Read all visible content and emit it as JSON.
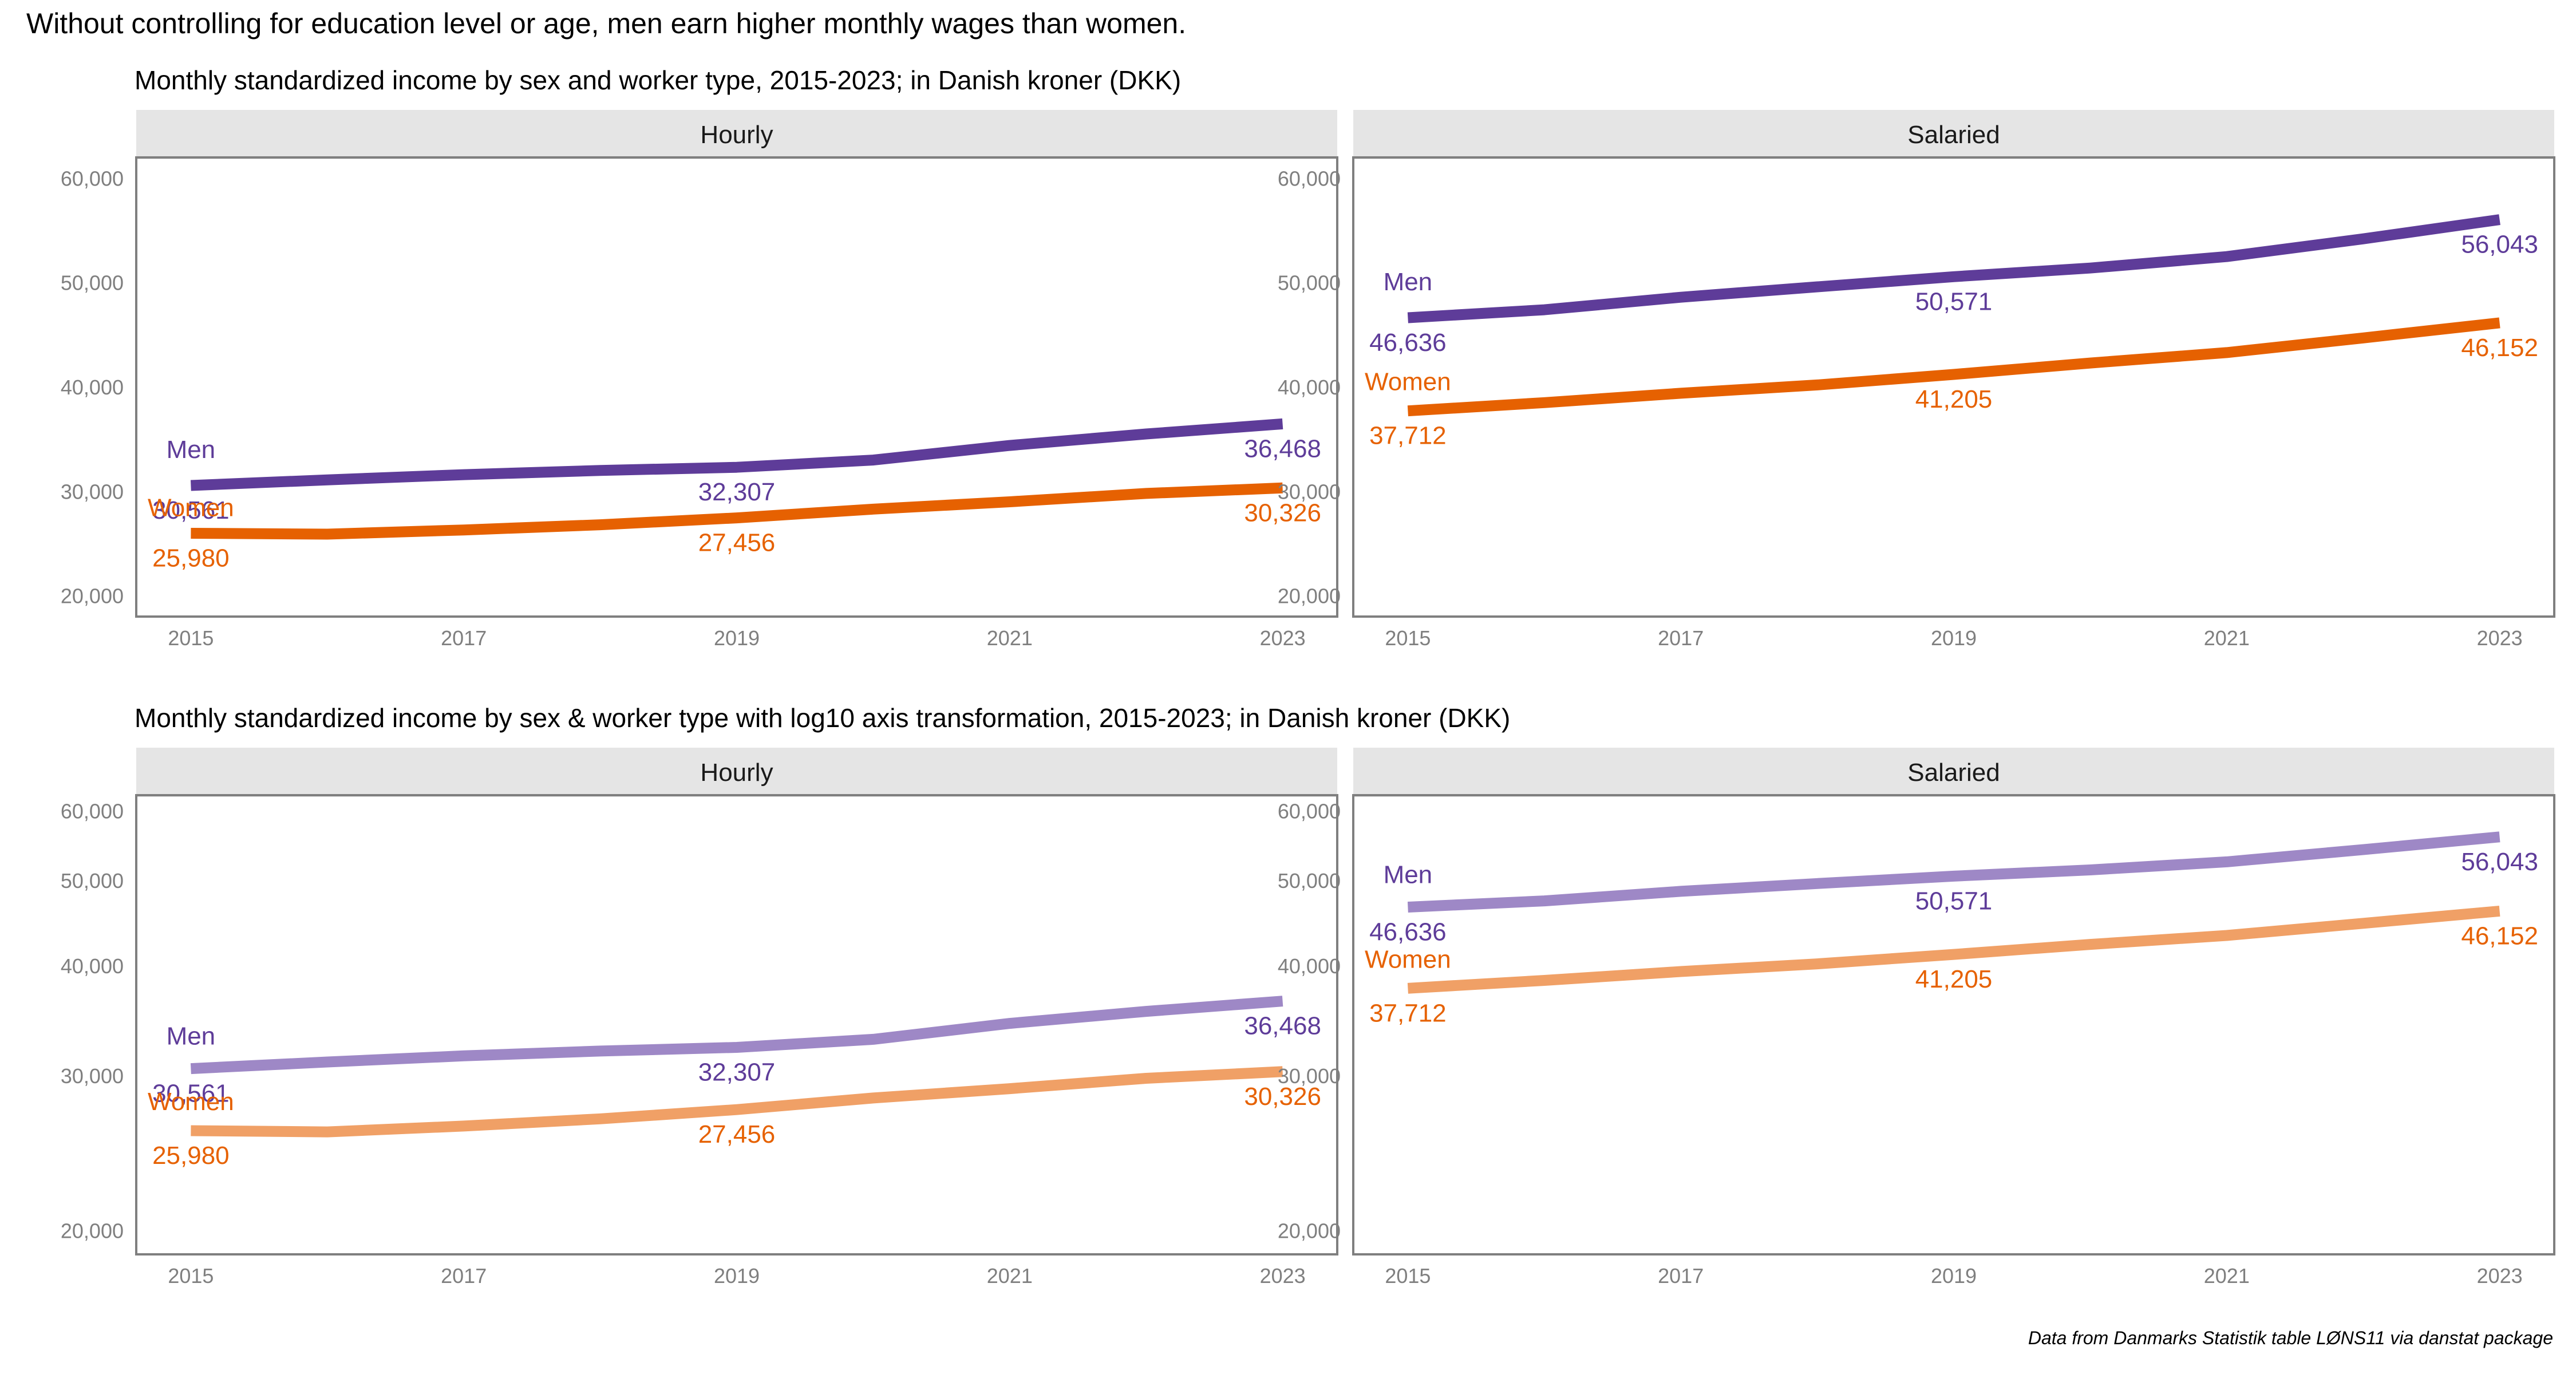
{
  "figure": {
    "title": "Without controlling for education level or age, men earn higher monthly wages than women.",
    "caption": "Data from Danmarks Statistik table LØNS11 via danstat package"
  },
  "colors": {
    "men": "#5e3c99",
    "women": "#e66101",
    "men_light": "#9e88c6",
    "women_light": "#f0a066",
    "strip_bg": "#e5e5e5",
    "panel_border": "#7f7f7f",
    "tick_label": "#7f7f7f"
  },
  "chart_data": [
    {
      "type": "line",
      "subtitle": "Monthly standardized income by sex and worker type, 2015-2023; in Danish kroner (DKK)",
      "yscale": "linear",
      "ylim": [
        18000,
        62000
      ],
      "y_ticks": [
        20000,
        30000,
        40000,
        50000,
        60000
      ],
      "y_tick_labels": [
        "20,000",
        "30,000",
        "40,000",
        "50,000",
        "60,000"
      ],
      "x_ticks": [
        2015,
        2017,
        2019,
        2021,
        2023
      ],
      "x_tick_labels": [
        "2015",
        "2017",
        "2019",
        "2021",
        "2023"
      ],
      "xlim": [
        2014.6,
        2023.4
      ],
      "facets": [
        {
          "label": "Hourly",
          "series": [
            {
              "name": "Men",
              "x": [
                2015,
                2016,
                2017,
                2018,
                2019,
                2020,
                2021,
                2022,
                2023
              ],
              "values": [
                30561,
                31100,
                31600,
                32000,
                32307,
                33000,
                34400,
                35500,
                36468
              ],
              "labels": [
                {
                  "x": 2015,
                  "value": 30561,
                  "text": "30,561"
                },
                {
                  "x": 2019,
                  "value": 32307,
                  "text": "32,307"
                },
                {
                  "x": 2023,
                  "value": 36468,
                  "text": "36,468"
                }
              ]
            },
            {
              "name": "Women",
              "x": [
                2015,
                2016,
                2017,
                2018,
                2019,
                2020,
                2021,
                2022,
                2023
              ],
              "values": [
                25980,
                25900,
                26300,
                26800,
                27456,
                28300,
                29000,
                29800,
                30326
              ],
              "labels": [
                {
                  "x": 2015,
                  "value": 25980,
                  "text": "25,980"
                },
                {
                  "x": 2019,
                  "value": 27456,
                  "text": "27,456"
                },
                {
                  "x": 2023,
                  "value": 30326,
                  "text": "30,326"
                }
              ]
            }
          ]
        },
        {
          "label": "Salaried",
          "series": [
            {
              "name": "Men",
              "x": [
                2015,
                2016,
                2017,
                2018,
                2019,
                2020,
                2021,
                2022,
                2023
              ],
              "values": [
                46636,
                47400,
                48600,
                49600,
                50571,
                51400,
                52500,
                54200,
                56043
              ],
              "labels": [
                {
                  "x": 2015,
                  "value": 46636,
                  "text": "46,636"
                },
                {
                  "x": 2019,
                  "value": 50571,
                  "text": "50,571"
                },
                {
                  "x": 2023,
                  "value": 56043,
                  "text": "56,043"
                }
              ]
            },
            {
              "name": "Women",
              "x": [
                2015,
                2016,
                2017,
                2018,
                2019,
                2020,
                2021,
                2022,
                2023
              ],
              "values": [
                37712,
                38500,
                39400,
                40200,
                41205,
                42300,
                43300,
                44700,
                46152
              ],
              "labels": [
                {
                  "x": 2015,
                  "value": 37712,
                  "text": "37,712"
                },
                {
                  "x": 2019,
                  "value": 41205,
                  "text": "41,205"
                },
                {
                  "x": 2023,
                  "value": 46152,
                  "text": "46,152"
                }
              ]
            }
          ]
        }
      ]
    },
    {
      "type": "line",
      "subtitle": "Monthly standardized income by sex & worker type with log10 axis transformation, 2015-2023; in Danish kroner (DKK)",
      "yscale": "log10",
      "ylim": [
        18800,
        62500
      ],
      "y_ticks": [
        20000,
        30000,
        40000,
        50000,
        60000
      ],
      "y_tick_labels": [
        "20,000",
        "30,000",
        "40,000",
        "50,000",
        "60,000"
      ],
      "x_ticks": [
        2015,
        2017,
        2019,
        2021,
        2023
      ],
      "x_tick_labels": [
        "2015",
        "2017",
        "2019",
        "2021",
        "2023"
      ],
      "xlim": [
        2014.6,
        2023.4
      ],
      "facets": [
        {
          "label": "Hourly",
          "series": [
            {
              "name": "Men",
              "x": [
                2015,
                2016,
                2017,
                2018,
                2019,
                2020,
                2021,
                2022,
                2023
              ],
              "values": [
                30561,
                31100,
                31600,
                32000,
                32307,
                33000,
                34400,
                35500,
                36468
              ],
              "labels": [
                {
                  "x": 2015,
                  "value": 30561,
                  "text": "30,561"
                },
                {
                  "x": 2019,
                  "value": 32307,
                  "text": "32,307"
                },
                {
                  "x": 2023,
                  "value": 36468,
                  "text": "36,468"
                }
              ]
            },
            {
              "name": "Women",
              "x": [
                2015,
                2016,
                2017,
                2018,
                2019,
                2020,
                2021,
                2022,
                2023
              ],
              "values": [
                25980,
                25900,
                26300,
                26800,
                27456,
                28300,
                29000,
                29800,
                30326
              ],
              "labels": [
                {
                  "x": 2015,
                  "value": 25980,
                  "text": "25,980"
                },
                {
                  "x": 2019,
                  "value": 27456,
                  "text": "27,456"
                },
                {
                  "x": 2023,
                  "value": 30326,
                  "text": "30,326"
                }
              ]
            }
          ]
        },
        {
          "label": "Salaried",
          "series": [
            {
              "name": "Men",
              "x": [
                2015,
                2016,
                2017,
                2018,
                2019,
                2020,
                2021,
                2022,
                2023
              ],
              "values": [
                46636,
                47400,
                48600,
                49600,
                50571,
                51400,
                52500,
                54200,
                56043
              ],
              "labels": [
                {
                  "x": 2015,
                  "value": 46636,
                  "text": "46,636"
                },
                {
                  "x": 2019,
                  "value": 50571,
                  "text": "50,571"
                },
                {
                  "x": 2023,
                  "value": 56043,
                  "text": "56,043"
                }
              ]
            },
            {
              "name": "Women",
              "x": [
                2015,
                2016,
                2017,
                2018,
                2019,
                2020,
                2021,
                2022,
                2023
              ],
              "values": [
                37712,
                38500,
                39400,
                40200,
                41205,
                42300,
                43300,
                44700,
                46152
              ],
              "labels": [
                {
                  "x": 2015,
                  "value": 37712,
                  "text": "37,712"
                },
                {
                  "x": 2019,
                  "value": 41205,
                  "text": "41,205"
                },
                {
                  "x": 2023,
                  "value": 46152,
                  "text": "46,152"
                }
              ]
            }
          ]
        }
      ]
    }
  ]
}
